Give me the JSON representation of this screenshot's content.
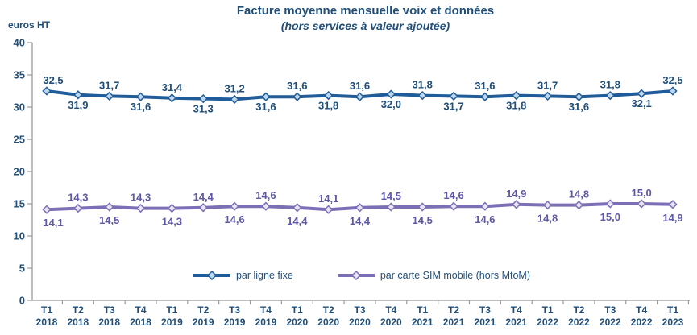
{
  "header": {
    "title": "Facture moyenne mensuelle voix et données",
    "subtitle": "(hors services à valeur ajoutée)",
    "y_axis_unit_label": "euros HT"
  },
  "colors": {
    "heading_text": "#1F4E79",
    "axis_line": "#9B9B9B",
    "fixed_line": "#1F5C99",
    "fixed_marker_fill": "#BDD7EE",
    "fixed_label_text": "#1F4E79",
    "mobile_line": "#7D6FB5",
    "mobile_marker_fill": "#E9E5F4",
    "mobile_label_text": "#5D58A6"
  },
  "chart_data": {
    "type": "line",
    "title": "Facture moyenne mensuelle voix et données",
    "subtitle": "(hors services à valeur ajoutée)",
    "ylabel": "euros HT",
    "xlabel": "",
    "ylim": [
      0,
      40
    ],
    "y_ticks": [
      0,
      5,
      10,
      15,
      20,
      25,
      30,
      35,
      40
    ],
    "grid": false,
    "legend_position": "bottom-center",
    "categories": [
      [
        "T1",
        "2018"
      ],
      [
        "T2",
        "2018"
      ],
      [
        "T3",
        "2018"
      ],
      [
        "T4",
        "2018"
      ],
      [
        "T1",
        "2019"
      ],
      [
        "T2",
        "2019"
      ],
      [
        "T3",
        "2019"
      ],
      [
        "T4",
        "2019"
      ],
      [
        "T1",
        "2020"
      ],
      [
        "T2",
        "2020"
      ],
      [
        "T3",
        "2020"
      ],
      [
        "T4",
        "2020"
      ],
      [
        "T1",
        "2021"
      ],
      [
        "T2",
        "2021"
      ],
      [
        "T3",
        "2021"
      ],
      [
        "T4",
        "2021"
      ],
      [
        "T1",
        "2022"
      ],
      [
        "T2",
        "2022"
      ],
      [
        "T3",
        "2022"
      ],
      [
        "T4",
        "2022"
      ],
      [
        "T1",
        "2023"
      ]
    ],
    "series": [
      {
        "name": "par ligne fixe",
        "color": "#1F5C99",
        "marker_fill": "#BDD7EE",
        "label_color": "#1F4E79",
        "first_label_position": "above",
        "values": [
          32.5,
          31.9,
          31.7,
          31.6,
          31.4,
          31.3,
          31.2,
          31.6,
          31.6,
          31.8,
          31.6,
          32.0,
          31.8,
          31.7,
          31.6,
          31.8,
          31.7,
          31.6,
          31.8,
          32.1,
          32.5
        ],
        "labels": [
          "32,5",
          "31,9",
          "31,7",
          "31,6",
          "31,4",
          "31,3",
          "31,2",
          "31,6",
          "31,6",
          "31,8",
          "31,6",
          "32,0",
          "31,8",
          "31,7",
          "31,6",
          "31,8",
          "31,7",
          "31,6",
          "31,8",
          "32,1",
          "32,5"
        ]
      },
      {
        "name": "par carte SIM mobile (hors MtoM)",
        "color": "#7D6FB5",
        "marker_fill": "#E9E5F4",
        "label_color": "#5D58A6",
        "first_label_position": "below",
        "values": [
          14.1,
          14.3,
          14.5,
          14.3,
          14.3,
          14.4,
          14.6,
          14.6,
          14.4,
          14.1,
          14.4,
          14.5,
          14.5,
          14.6,
          14.6,
          14.9,
          14.8,
          14.8,
          15.0,
          15.0,
          14.9
        ],
        "labels": [
          "14,1",
          "14,3",
          "14,5",
          "14,3",
          "14,3",
          "14,4",
          "14,6",
          "14,6",
          "14,4",
          "14,1",
          "14,4",
          "14,5",
          "14,5",
          "14,6",
          "14,6",
          "14,9",
          "14,8",
          "14,8",
          "15,0",
          "15,0",
          "14,9"
        ]
      }
    ]
  }
}
